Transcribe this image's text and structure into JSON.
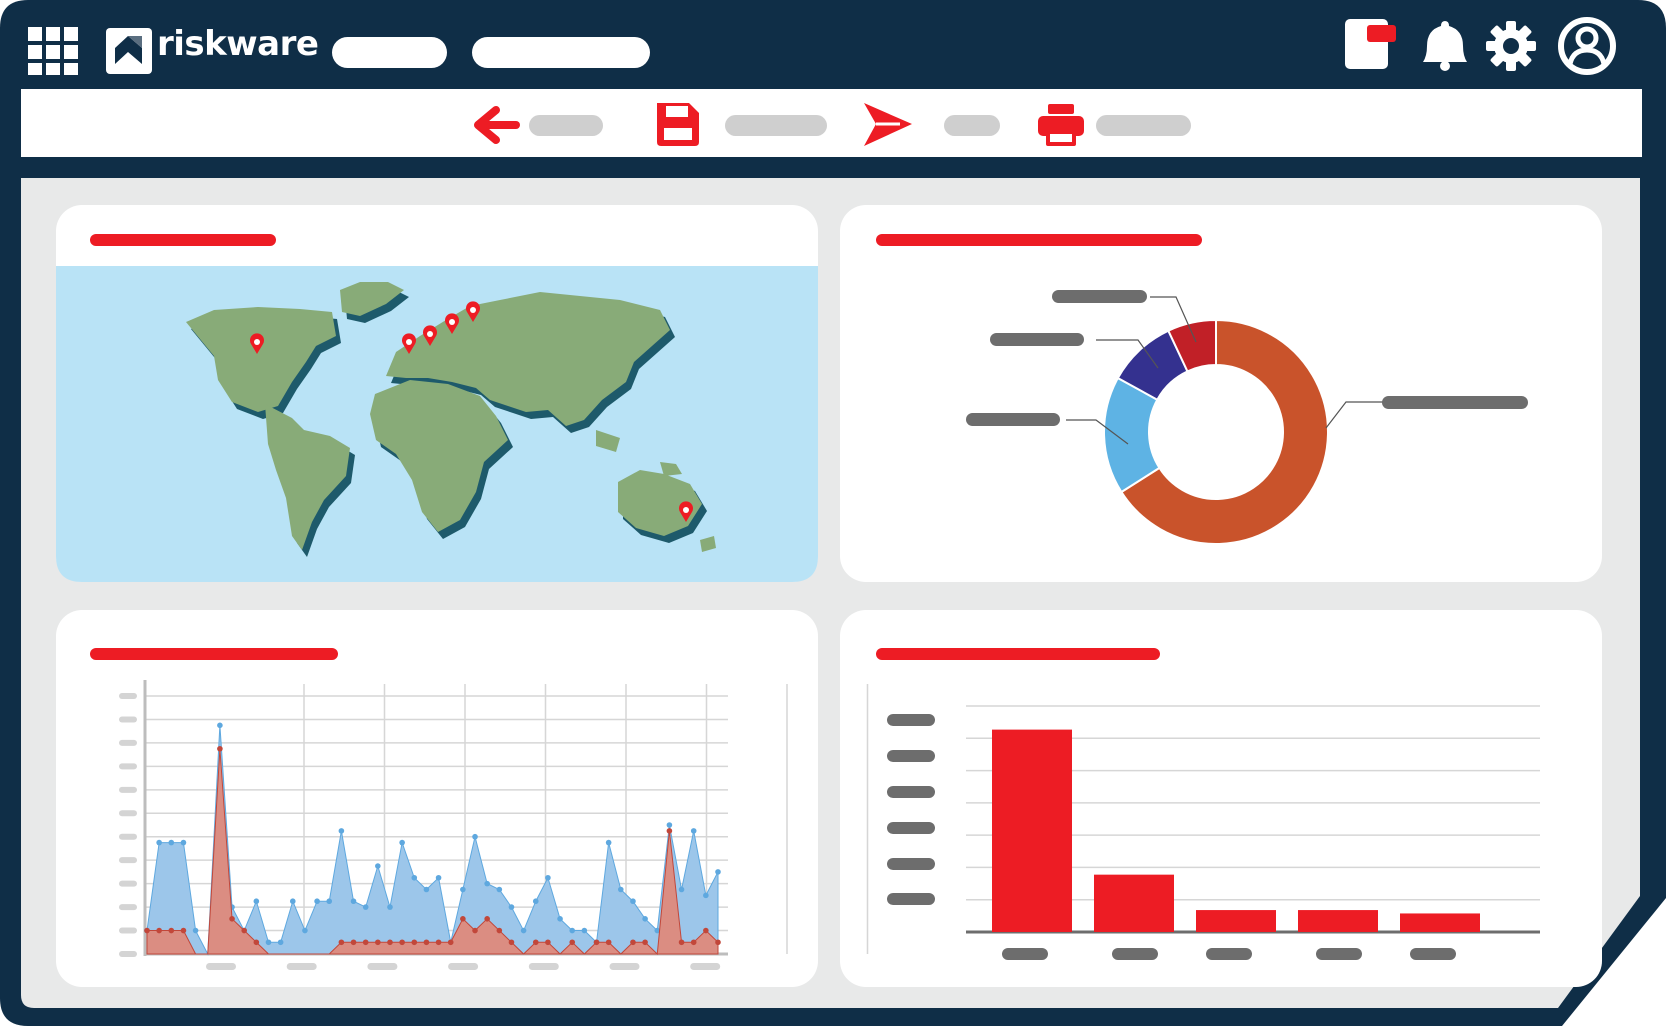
{
  "app": {
    "brand_name": "riskware",
    "icons": {
      "apps": "grid-icon",
      "logo": "riskware-logo",
      "notifications_tab": "window-notification-icon",
      "bell": "bell-icon",
      "settings": "gear-icon",
      "user": "user-avatar-icon",
      "back": "arrow-left-icon",
      "save": "floppy-disk-icon",
      "send": "paper-plane-icon",
      "print": "printer-icon",
      "map_marker": "map-pin-icon"
    }
  },
  "colors": {
    "frame": "#0f2e47",
    "accent_red": "#ed1c24",
    "placeholder_gray": "#cfcfcf",
    "content_bg": "#e8e9e9",
    "map_water": "#b9e3f6",
    "land": "#88ab78",
    "land_shadow": "#1e5a6b",
    "donut_orange": "#c9532b",
    "donut_blue": "#5eb3e4",
    "donut_navy": "#34318f",
    "donut_red": "#c12027",
    "area_blue": "#9cc6ea",
    "area_red": "#de8a7c"
  },
  "map": {
    "markers": [
      "north-america",
      "western-europe",
      "central-europe",
      "northern-europe",
      "scandinavia",
      "australia"
    ]
  },
  "chart_data": [
    {
      "type": "pie",
      "variant": "donut",
      "values": [
        0.66,
        0.17,
        0.1,
        0.07
      ],
      "colors": [
        "#c9532b",
        "#5eb3e4",
        "#34318f",
        "#c12027"
      ],
      "labels_visible": false
    },
    {
      "type": "area",
      "x": [
        1,
        2,
        3,
        4,
        5,
        6,
        7,
        8,
        9,
        10,
        11,
        12,
        13,
        14,
        15,
        16,
        17,
        18,
        19,
        20,
        21,
        22,
        23,
        24,
        25,
        26,
        27,
        28,
        29,
        30,
        31,
        32,
        33,
        34,
        35,
        36,
        37,
        38,
        39,
        40,
        41,
        42,
        43,
        44,
        45,
        46,
        47,
        48
      ],
      "series": [
        {
          "values": [
            2,
            9.5,
            9.5,
            9.5,
            2,
            0,
            19.5,
            4,
            2,
            4.5,
            1,
            1,
            4.5,
            2,
            4.5,
            4.5,
            10.5,
            4.5,
            4,
            7.5,
            4,
            9.5,
            6.5,
            5.5,
            6.5,
            1,
            5.5,
            10,
            6,
            5.5,
            4,
            2,
            4.5,
            6.5,
            3,
            2,
            2,
            1,
            9.5,
            5.5,
            4.5,
            3,
            2,
            11,
            5.5,
            10.5,
            5,
            7
          ]
        },
        {
          "values": [
            2,
            2,
            2,
            2,
            0,
            0,
            17.5,
            3,
            2,
            1,
            0,
            0,
            0,
            0,
            0,
            0,
            1,
            1,
            1,
            1,
            1,
            1,
            1,
            1,
            1,
            1,
            3,
            2,
            3,
            2,
            1,
            0,
            1,
            1,
            0,
            1,
            0,
            1,
            1,
            0,
            1,
            1,
            0,
            10.5,
            1,
            1,
            2,
            1
          ]
        }
      ],
      "ylim": [
        0,
        22
      ],
      "colors": [
        "#9cc6ea",
        "#de8a7c"
      ],
      "tick_labels_visible": false
    },
    {
      "type": "bar",
      "values": [
        6,
        1.7,
        0.65,
        0.65,
        0.55
      ],
      "ylim": [
        0,
        6.7
      ],
      "color": "#ed1c24",
      "tick_labels_visible": false
    }
  ]
}
